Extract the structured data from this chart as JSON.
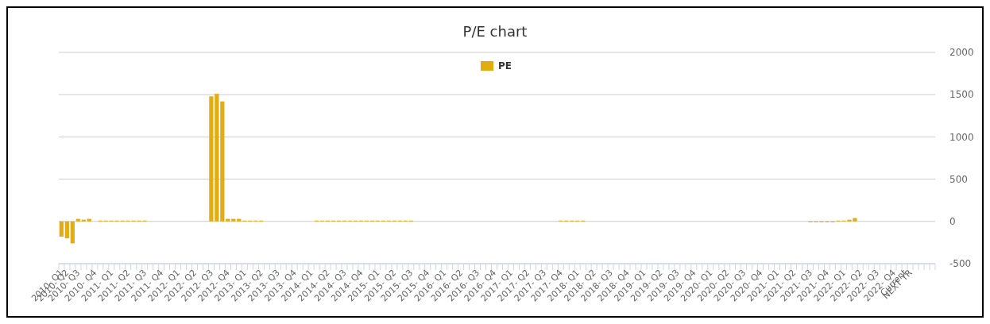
{
  "chart_data": {
    "type": "bar",
    "title": "P/E chart",
    "categories": [
      "2010- Q1",
      "2010- Q2",
      null,
      "2010- Q3",
      null,
      null,
      "2010- Q4",
      null,
      null,
      "2011- Q1",
      null,
      null,
      "2011- Q2",
      null,
      null,
      "2011- Q3",
      null,
      null,
      "2011- Q4",
      null,
      null,
      "2012- Q1",
      null,
      null,
      "2012- Q2",
      null,
      null,
      "2012- Q3",
      null,
      null,
      "2012- Q4",
      null,
      null,
      "2013- Q1",
      null,
      null,
      "2013- Q2",
      null,
      null,
      "2013- Q3",
      null,
      null,
      "2013- Q4",
      null,
      null,
      "2014- Q1",
      null,
      null,
      "2014- Q2",
      null,
      null,
      "2014- Q3",
      null,
      null,
      "2014- Q4",
      null,
      null,
      "2015- Q1",
      null,
      null,
      "2015- Q2",
      null,
      null,
      "2015- Q3",
      null,
      null,
      "2015- Q4",
      null,
      null,
      "2016- Q1",
      null,
      null,
      "2016- Q2",
      null,
      null,
      "2016- Q3",
      null,
      null,
      "2016- Q4",
      null,
      null,
      "2017- Q1",
      null,
      null,
      "2017- Q2",
      null,
      null,
      "2017- Q3",
      null,
      null,
      "2017- Q4",
      null,
      null,
      "2018- Q1",
      null,
      null,
      "2018- Q2",
      null,
      null,
      "2018- Q3",
      null,
      null,
      "2018- Q4",
      null,
      null,
      "2019- Q1",
      null,
      null,
      "2019- Q2",
      null,
      null,
      "2019- Q3",
      null,
      null,
      "2019- Q4",
      null,
      null,
      "2020- Q1",
      null,
      null,
      "2020- Q2",
      null,
      null,
      "2020- Q3",
      null,
      null,
      "2020- Q4",
      null,
      null,
      "2021- Q1",
      null,
      null,
      "2021- Q2",
      null,
      null,
      "2021- Q3",
      null,
      null,
      "2021- Q4",
      null,
      null,
      "2022- Q1",
      null,
      null,
      "2022- Q2",
      null,
      null,
      "2022- Q3",
      null,
      null,
      "2022- Q4",
      null,
      "Current",
      "NEXT YR",
      null,
      null,
      null,
      null
    ],
    "series": [
      {
        "name": "PE",
        "color": "#e3ac10",
        "values": [
          -180,
          -200,
          -260,
          30,
          20,
          30,
          null,
          10,
          10,
          10,
          10,
          10,
          10,
          10,
          10,
          10,
          null,
          null,
          null,
          null,
          null,
          null,
          null,
          null,
          null,
          null,
          null,
          1480,
          1510,
          1420,
          30,
          30,
          30,
          10,
          10,
          10,
          10,
          null,
          null,
          null,
          null,
          null,
          null,
          null,
          null,
          null,
          10,
          10,
          10,
          10,
          10,
          10,
          10,
          10,
          10,
          10,
          10,
          10,
          10,
          10,
          10,
          10,
          10,
          10,
          null,
          null,
          null,
          null,
          null,
          null,
          null,
          null,
          null,
          null,
          null,
          null,
          null,
          null,
          null,
          null,
          null,
          null,
          null,
          null,
          null,
          null,
          null,
          null,
          null,
          null,
          10,
          10,
          10,
          10,
          10,
          null,
          null,
          null,
          null,
          null,
          null,
          null,
          null,
          null,
          null,
          null,
          null,
          null,
          null,
          null,
          null,
          null,
          null,
          null,
          null,
          null,
          null,
          null,
          null,
          null,
          null,
          null,
          null,
          null,
          null,
          null,
          null,
          null,
          null,
          null,
          null,
          null,
          null,
          null,
          null,
          -10,
          -10,
          -10,
          -10,
          -10,
          10,
          10,
          20,
          40,
          null,
          null,
          null,
          null,
          null,
          null,
          null,
          null,
          null,
          null,
          null,
          null,
          null,
          null
        ]
      }
    ],
    "ylim": [
      -500,
      2000
    ],
    "yticks": [
      -500,
      0,
      500,
      1000,
      1500,
      2000
    ],
    "grid": "y",
    "legend": "top"
  }
}
